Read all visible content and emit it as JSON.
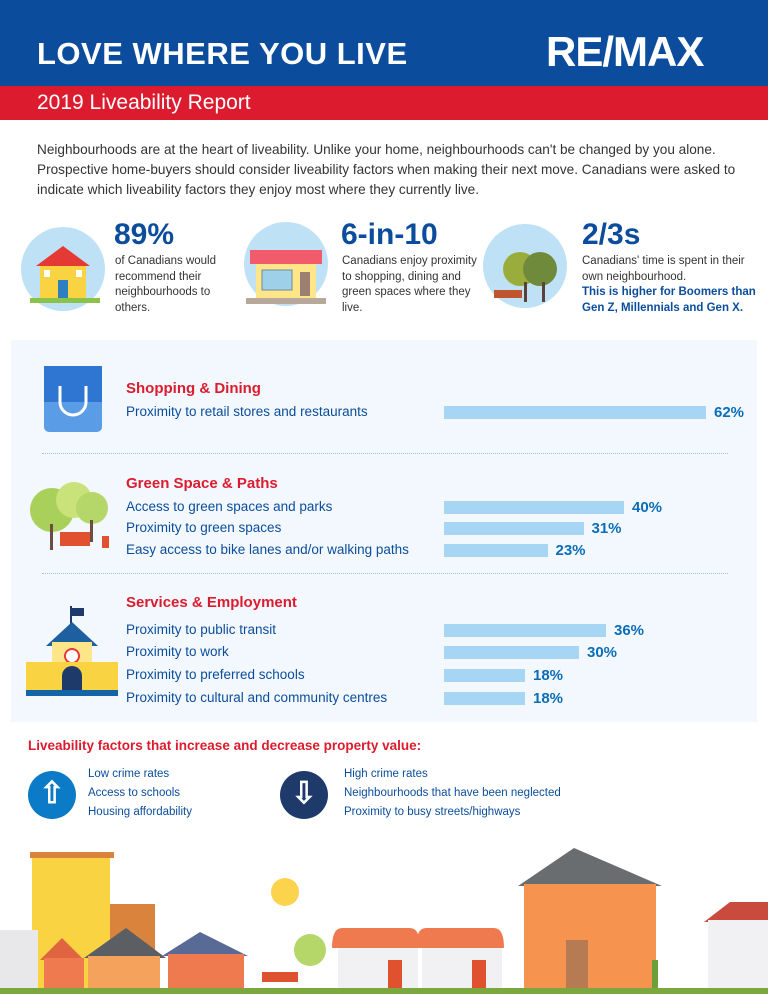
{
  "header": {
    "title": "LOVE WHERE YOU LIVE",
    "logo": "RE/MAX",
    "subtitle": "2019 Liveability Report"
  },
  "intro": "Neighbourhoods are at the heart of liveability. Unlike your home, neighbourhoods can't be changed by you alone. Prospective home-buyers should consider liveability factors when making their next move. Canadians were asked to indicate which liveability factors they enjoy most where they currently live.",
  "stats": [
    {
      "value": "89%",
      "text": "of Canadians would recommend their neighbourhoods to others.",
      "icon": "house-icon"
    },
    {
      "value": "6-in-10",
      "text": "Canadians enjoy proximity to shopping, dining and green spaces where they live.",
      "icon": "storefront-icon"
    },
    {
      "value": "2/3s",
      "text": "Canadians' time is spent in their own neighbourhood.",
      "highlight": "This is higher for Boomers than Gen Z, Millennials and Gen X.",
      "icon": "park-icon"
    }
  ],
  "chart_data": {
    "type": "bar",
    "orientation": "horizontal",
    "unit": "%",
    "groups": [
      {
        "title": "Shopping & Dining",
        "icon": "shopping-bag-icon",
        "categories": [
          "Proximity to retail stores and restaurants"
        ],
        "values": [
          62
        ],
        "labels": [
          "62%"
        ]
      },
      {
        "title": "Green Space & Paths",
        "icon": "park-icon",
        "categories": [
          "Access to green spaces and parks",
          "Proximity to green spaces",
          "Easy access to bike lanes and/or walking paths"
        ],
        "values": [
          40,
          31,
          23
        ],
        "labels": [
          "40%",
          "31%",
          "23%"
        ]
      },
      {
        "title": "Services & Employment",
        "icon": "school-icon",
        "categories": [
          "Proximity to public transit",
          "Proximity to work",
          "Proximity to preferred schools",
          "Proximity to cultural and community centres"
        ],
        "values": [
          36,
          30,
          18,
          18
        ],
        "labels": [
          "36%",
          "30%",
          "18%",
          "18%"
        ]
      }
    ],
    "bar_color": "#a6d6f3"
  },
  "property": {
    "heading": "Liveability factors that increase and decrease property value:",
    "increase": [
      "Low crime rates",
      "Access to schools",
      "Housing affordability"
    ],
    "decrease": [
      "High crime rates",
      "Neighbourhoods that have been neglected",
      "Proximity to busy streets/highways"
    ],
    "increase_icon": "arrow-up-icon",
    "decrease_icon": "arrow-down-icon"
  },
  "colors": {
    "blue": "#0b4d9c",
    "red": "#dc1c2e",
    "accent": "#0b6db8"
  }
}
